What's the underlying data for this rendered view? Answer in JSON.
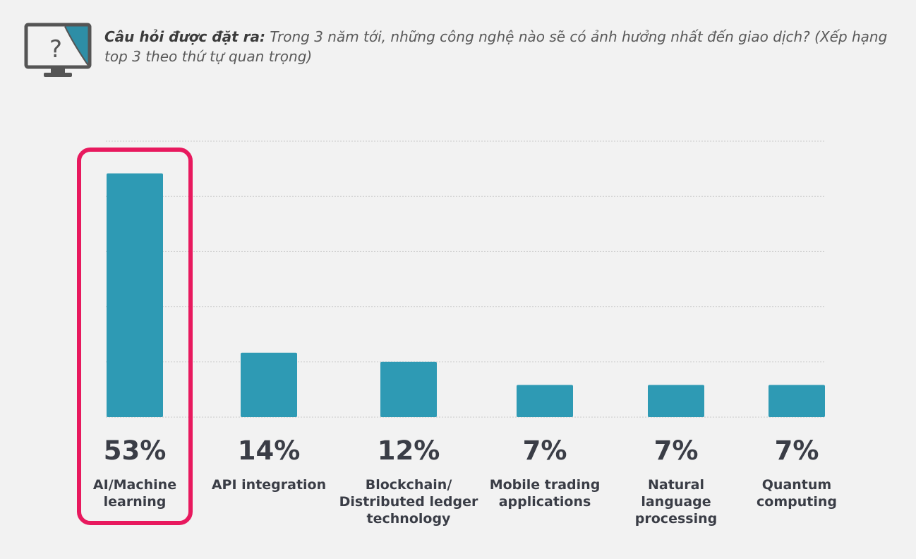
{
  "header": {
    "icon": "monitor-question-icon",
    "label": "Câu hỏi được đặt ra:",
    "question": "Trong 3 năm tới, những công nghệ nào sẽ có ảnh hưởng nhất đến giao dịch? (Xếp hạng top 3 theo thứ tự quan trọng)"
  },
  "chart_data": {
    "type": "bar",
    "categories": [
      [
        "AI/Machine",
        "learning"
      ],
      [
        "API integration"
      ],
      [
        "Blockchain/",
        "Distributed ledger",
        "technology"
      ],
      [
        "Mobile trading",
        "applications"
      ],
      [
        "Natural",
        "language",
        "processing"
      ],
      [
        "Quantum",
        "computing"
      ]
    ],
    "values": [
      53,
      14,
      12,
      7,
      7,
      7
    ],
    "value_labels": [
      "53%",
      "14%",
      "12%",
      "7%",
      "7%",
      "7%"
    ],
    "ylim": [
      0,
      60
    ],
    "grid": true,
    "highlighted_category_index": 0,
    "colors": {
      "bar": "#2e9ab4",
      "highlight": "#e8195e",
      "text": "#3a3d46"
    }
  }
}
